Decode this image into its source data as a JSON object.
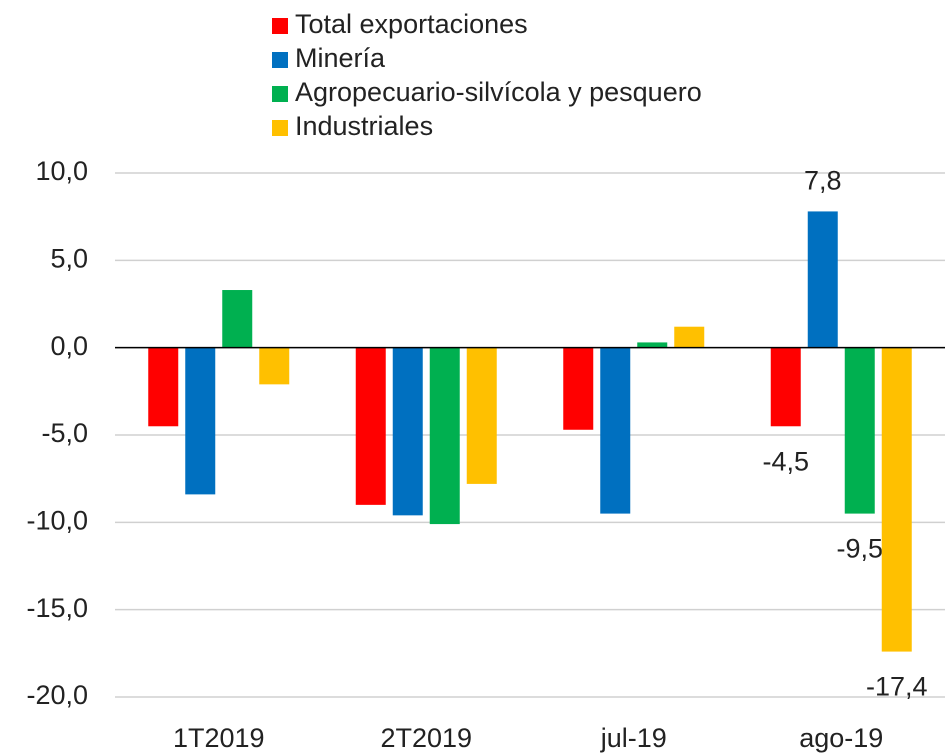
{
  "chart_data": {
    "type": "bar",
    "categories": [
      "1T2019",
      "2T2019",
      "jul-19",
      "ago-19"
    ],
    "series": [
      {
        "name": "Total exportaciones",
        "color": "#ff0000",
        "values": [
          -4.5,
          -9.0,
          -4.7,
          -4.5
        ],
        "value_labels": [
          null,
          null,
          null,
          "-4,5"
        ]
      },
      {
        "name": "Minería",
        "color": "#0070c0",
        "values": [
          -8.4,
          -9.6,
          -9.5,
          7.8
        ],
        "value_labels": [
          null,
          null,
          null,
          "7,8"
        ]
      },
      {
        "name": "Agropecuario-silvícola y pesquero",
        "color": "#00b050",
        "values": [
          3.3,
          -10.1,
          0.3,
          -9.5
        ],
        "value_labels": [
          null,
          null,
          null,
          "-9,5"
        ]
      },
      {
        "name": "Industriales",
        "color": "#ffc000",
        "values": [
          -2.1,
          -7.8,
          1.2,
          -17.4
        ],
        "value_labels": [
          null,
          null,
          null,
          "-17,4"
        ]
      }
    ],
    "ylim": [
      -20,
      10
    ],
    "yticks": [
      {
        "value": -20,
        "label": "-20,0"
      },
      {
        "value": -15,
        "label": "-15,0"
      },
      {
        "value": -10,
        "label": "-10,0"
      },
      {
        "value": -5,
        "label": "-5,0"
      },
      {
        "value": 0,
        "label": "0,0"
      },
      {
        "value": 5,
        "label": "5,0"
      },
      {
        "value": 10,
        "label": "10,0"
      }
    ],
    "grid": true,
    "legend": "top"
  }
}
